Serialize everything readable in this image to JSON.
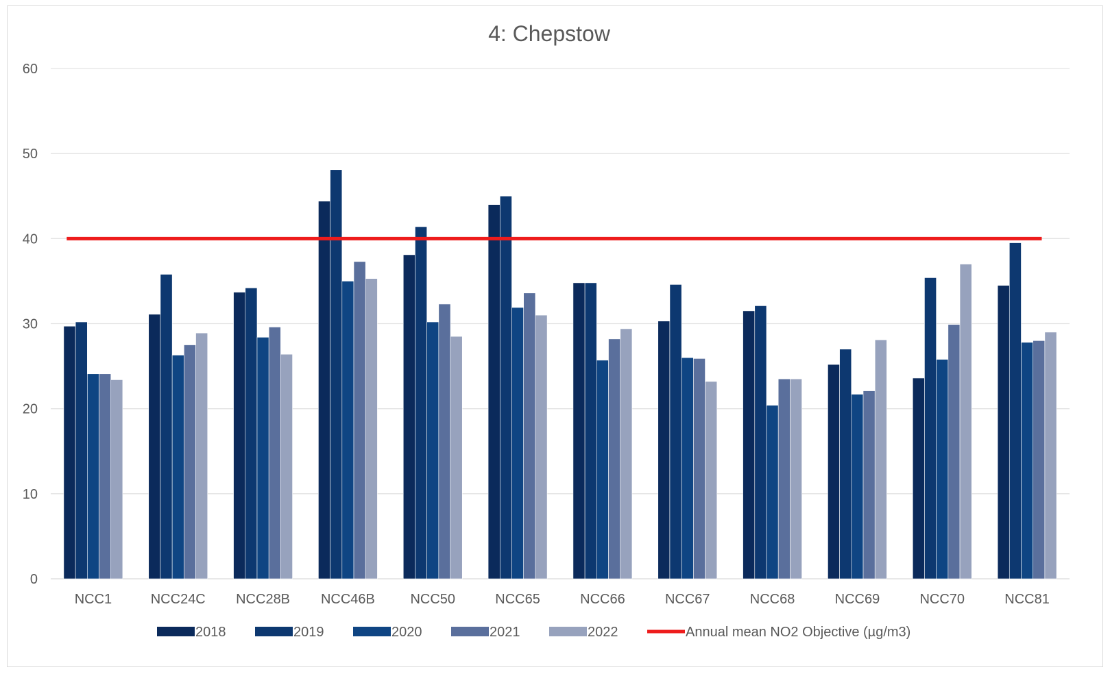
{
  "chart_data": {
    "type": "bar",
    "title": "4: Chepstow",
    "xlabel": "",
    "ylabel": "",
    "ylim": [
      0,
      60
    ],
    "yticks": [
      0,
      10,
      20,
      30,
      40,
      50,
      60
    ],
    "grid": true,
    "legend_position": "bottom",
    "categories": [
      "NCC1",
      "NCC24C",
      "NCC28B",
      "NCC46B",
      "NCC50",
      "NCC65",
      "NCC66",
      "NCC67",
      "NCC68",
      "NCC69",
      "NCC70",
      "NCC81"
    ],
    "series": [
      {
        "name": "2018",
        "color": "#0b2a5b",
        "values": [
          29.7,
          31.1,
          33.7,
          44.4,
          38.1,
          44.0,
          34.8,
          30.3,
          31.5,
          25.2,
          23.6,
          34.5
        ]
      },
      {
        "name": "2019",
        "color": "#0d3870",
        "values": [
          30.2,
          35.8,
          34.2,
          48.1,
          41.4,
          45.0,
          34.8,
          34.6,
          32.1,
          27.0,
          35.4,
          39.5
        ]
      },
      {
        "name": "2020",
        "color": "#0f4583",
        "values": [
          24.1,
          26.3,
          28.4,
          35.0,
          30.2,
          31.9,
          25.7,
          26.0,
          20.4,
          21.7,
          25.8,
          27.8
        ]
      },
      {
        "name": "2021",
        "color": "#5a6f9c",
        "values": [
          24.1,
          27.5,
          29.6,
          37.3,
          32.3,
          33.6,
          28.2,
          25.9,
          23.5,
          22.1,
          29.9,
          28.0
        ]
      },
      {
        "name": "2022",
        "color": "#97a2bd",
        "values": [
          23.4,
          28.9,
          26.4,
          35.3,
          28.5,
          31.0,
          29.4,
          23.2,
          23.5,
          28.1,
          37.0,
          29.0
        ]
      }
    ],
    "objective_line": {
      "name": "Annual mean NO2 Objective (µg/m3)",
      "value": 40,
      "color": "#ee1c1c"
    }
  }
}
